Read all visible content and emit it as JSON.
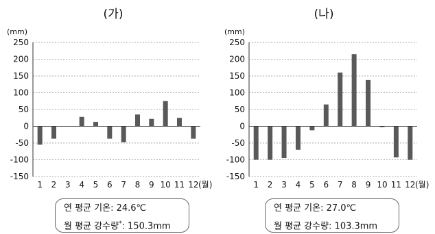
{
  "chart_data": [
    {
      "type": "bar",
      "title": "(가)",
      "unit_label": "(mm)",
      "x_unit": "(월)",
      "categories": [
        "1",
        "2",
        "3",
        "4",
        "5",
        "6",
        "7",
        "8",
        "9",
        "10",
        "11",
        "12"
      ],
      "values": [
        -55,
        -37,
        0,
        28,
        13,
        -37,
        -48,
        35,
        22,
        75,
        25,
        -37
      ],
      "ylim": [
        -150,
        250
      ],
      "yticks": [
        "250",
        "200",
        "150",
        "100",
        "50",
        "0",
        "-50",
        "-100",
        "-150"
      ],
      "grid": true,
      "bar_color": "#595959",
      "info": {
        "line1": "연 평균 기온: 24.6℃",
        "line2_prefix": "월 평균 강수량",
        "line2_mark": "*",
        "line2_suffix": ": 150.3mm"
      }
    },
    {
      "type": "bar",
      "title": "(나)",
      "unit_label": "(mm)",
      "x_unit": "(월)",
      "categories": [
        "1",
        "2",
        "3",
        "4",
        "5",
        "6",
        "7",
        "8",
        "9",
        "10",
        "11",
        "12"
      ],
      "values": [
        -100,
        -100,
        -95,
        -70,
        -12,
        65,
        160,
        215,
        138,
        -3,
        -93,
        -100
      ],
      "ylim": [
        -150,
        250
      ],
      "yticks": [
        "250",
        "200",
        "150",
        "100",
        "50",
        "0",
        "-50",
        "-100",
        "-150"
      ],
      "grid": true,
      "bar_color": "#595959",
      "info": {
        "line1": "연 평균 기온: 27.0℃",
        "line2_prefix": "월 평균 강수량",
        "line2_mark": "",
        "line2_suffix": ": 103.3mm"
      }
    }
  ]
}
